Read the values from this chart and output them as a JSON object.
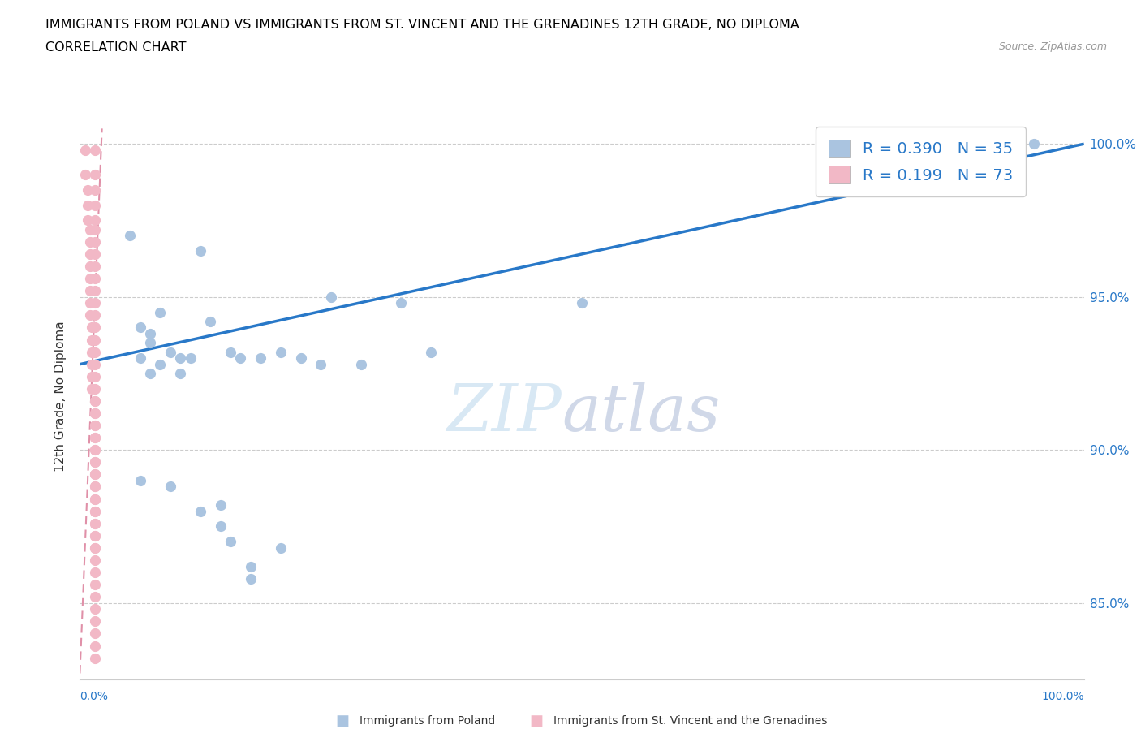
{
  "title_line1": "IMMIGRANTS FROM POLAND VS IMMIGRANTS FROM ST. VINCENT AND THE GRENADINES 12TH GRADE, NO DIPLOMA",
  "title_line2": "CORRELATION CHART",
  "source_text": "Source: ZipAtlas.com",
  "ylabel": "12th Grade, No Diploma",
  "ytick_values": [
    0.85,
    0.9,
    0.95,
    1.0
  ],
  "xlim": [
    0.0,
    1.0
  ],
  "ylim": [
    0.825,
    1.01
  ],
  "poland_color": "#aac4e0",
  "svg_color": "#f2b8c6",
  "trend_color": "#2878c8",
  "trend_dashed_color": "#e090a8",
  "legend_R_poland": "0.390",
  "legend_N_poland": "35",
  "legend_R_svg": "0.199",
  "legend_N_svg": "73",
  "poland_x": [
    0.05,
    0.12,
    0.25,
    0.32,
    0.08,
    0.06,
    0.07,
    0.07,
    0.09,
    0.1,
    0.11,
    0.15,
    0.16,
    0.18,
    0.2,
    0.22,
    0.24,
    0.06,
    0.09,
    0.14,
    0.17,
    0.2,
    0.35,
    0.13,
    0.28,
    0.5
  ],
  "poland_y": [
    0.97,
    0.965,
    0.95,
    0.948,
    0.945,
    0.94,
    0.938,
    0.935,
    0.932,
    0.93,
    0.93,
    0.932,
    0.93,
    0.93,
    0.932,
    0.93,
    0.928,
    0.89,
    0.888,
    0.882,
    0.862,
    0.868,
    0.932,
    0.942,
    0.928,
    0.948
  ],
  "poland_x2": [
    0.06,
    0.07,
    0.08,
    0.1,
    0.12,
    0.14,
    0.15,
    0.17,
    0.95
  ],
  "poland_y2": [
    0.93,
    0.925,
    0.928,
    0.925,
    0.88,
    0.875,
    0.87,
    0.858,
    1.0
  ],
  "svg_x": [
    0.005,
    0.005,
    0.008,
    0.008,
    0.008,
    0.01,
    0.01,
    0.01,
    0.01,
    0.01,
    0.01,
    0.01,
    0.01,
    0.012,
    0.012,
    0.012,
    0.012,
    0.012,
    0.012,
    0.015,
    0.015,
    0.015,
    0.015,
    0.015,
    0.015,
    0.015,
    0.015,
    0.015,
    0.015,
    0.015,
    0.015,
    0.015,
    0.015,
    0.015,
    0.015,
    0.015,
    0.015,
    0.015,
    0.015,
    0.015,
    0.015,
    0.015,
    0.015,
    0.015,
    0.015,
    0.015,
    0.015,
    0.015,
    0.015,
    0.015,
    0.015,
    0.015,
    0.015,
    0.015,
    0.015,
    0.015,
    0.015,
    0.015,
    0.015,
    0.015,
    0.015,
    0.015,
    0.015,
    0.015,
    0.015,
    0.015,
    0.015,
    0.015,
    0.015,
    0.015,
    0.015,
    0.015,
    0.015
  ],
  "svg_y": [
    0.998,
    0.99,
    0.985,
    0.98,
    0.975,
    0.972,
    0.968,
    0.964,
    0.96,
    0.956,
    0.952,
    0.948,
    0.944,
    0.94,
    0.936,
    0.932,
    0.928,
    0.924,
    0.92,
    0.916,
    0.912,
    0.908,
    0.904,
    0.9,
    0.896,
    0.892,
    0.888,
    0.884,
    0.88,
    0.876,
    0.872,
    0.868,
    0.864,
    0.86,
    0.856,
    0.852,
    0.848,
    0.844,
    0.84,
    0.836,
    0.832,
    0.998,
    0.99,
    0.985,
    0.98,
    0.975,
    0.972,
    0.968,
    0.964,
    0.96,
    0.956,
    0.952,
    0.948,
    0.944,
    0.94,
    0.936,
    0.932,
    0.928,
    0.924,
    0.92,
    0.916,
    0.912,
    0.908,
    0.904,
    0.9,
    0.896,
    0.892,
    0.888,
    0.884,
    0.88,
    0.876,
    0.872,
    0.868
  ],
  "trend_x0": 0.0,
  "trend_y0": 0.928,
  "trend_x1": 1.0,
  "trend_y1": 1.0,
  "svg_trend_x0": 0.0,
  "svg_trend_y0": 0.827,
  "svg_trend_x1": 0.022,
  "svg_trend_y1": 1.005
}
